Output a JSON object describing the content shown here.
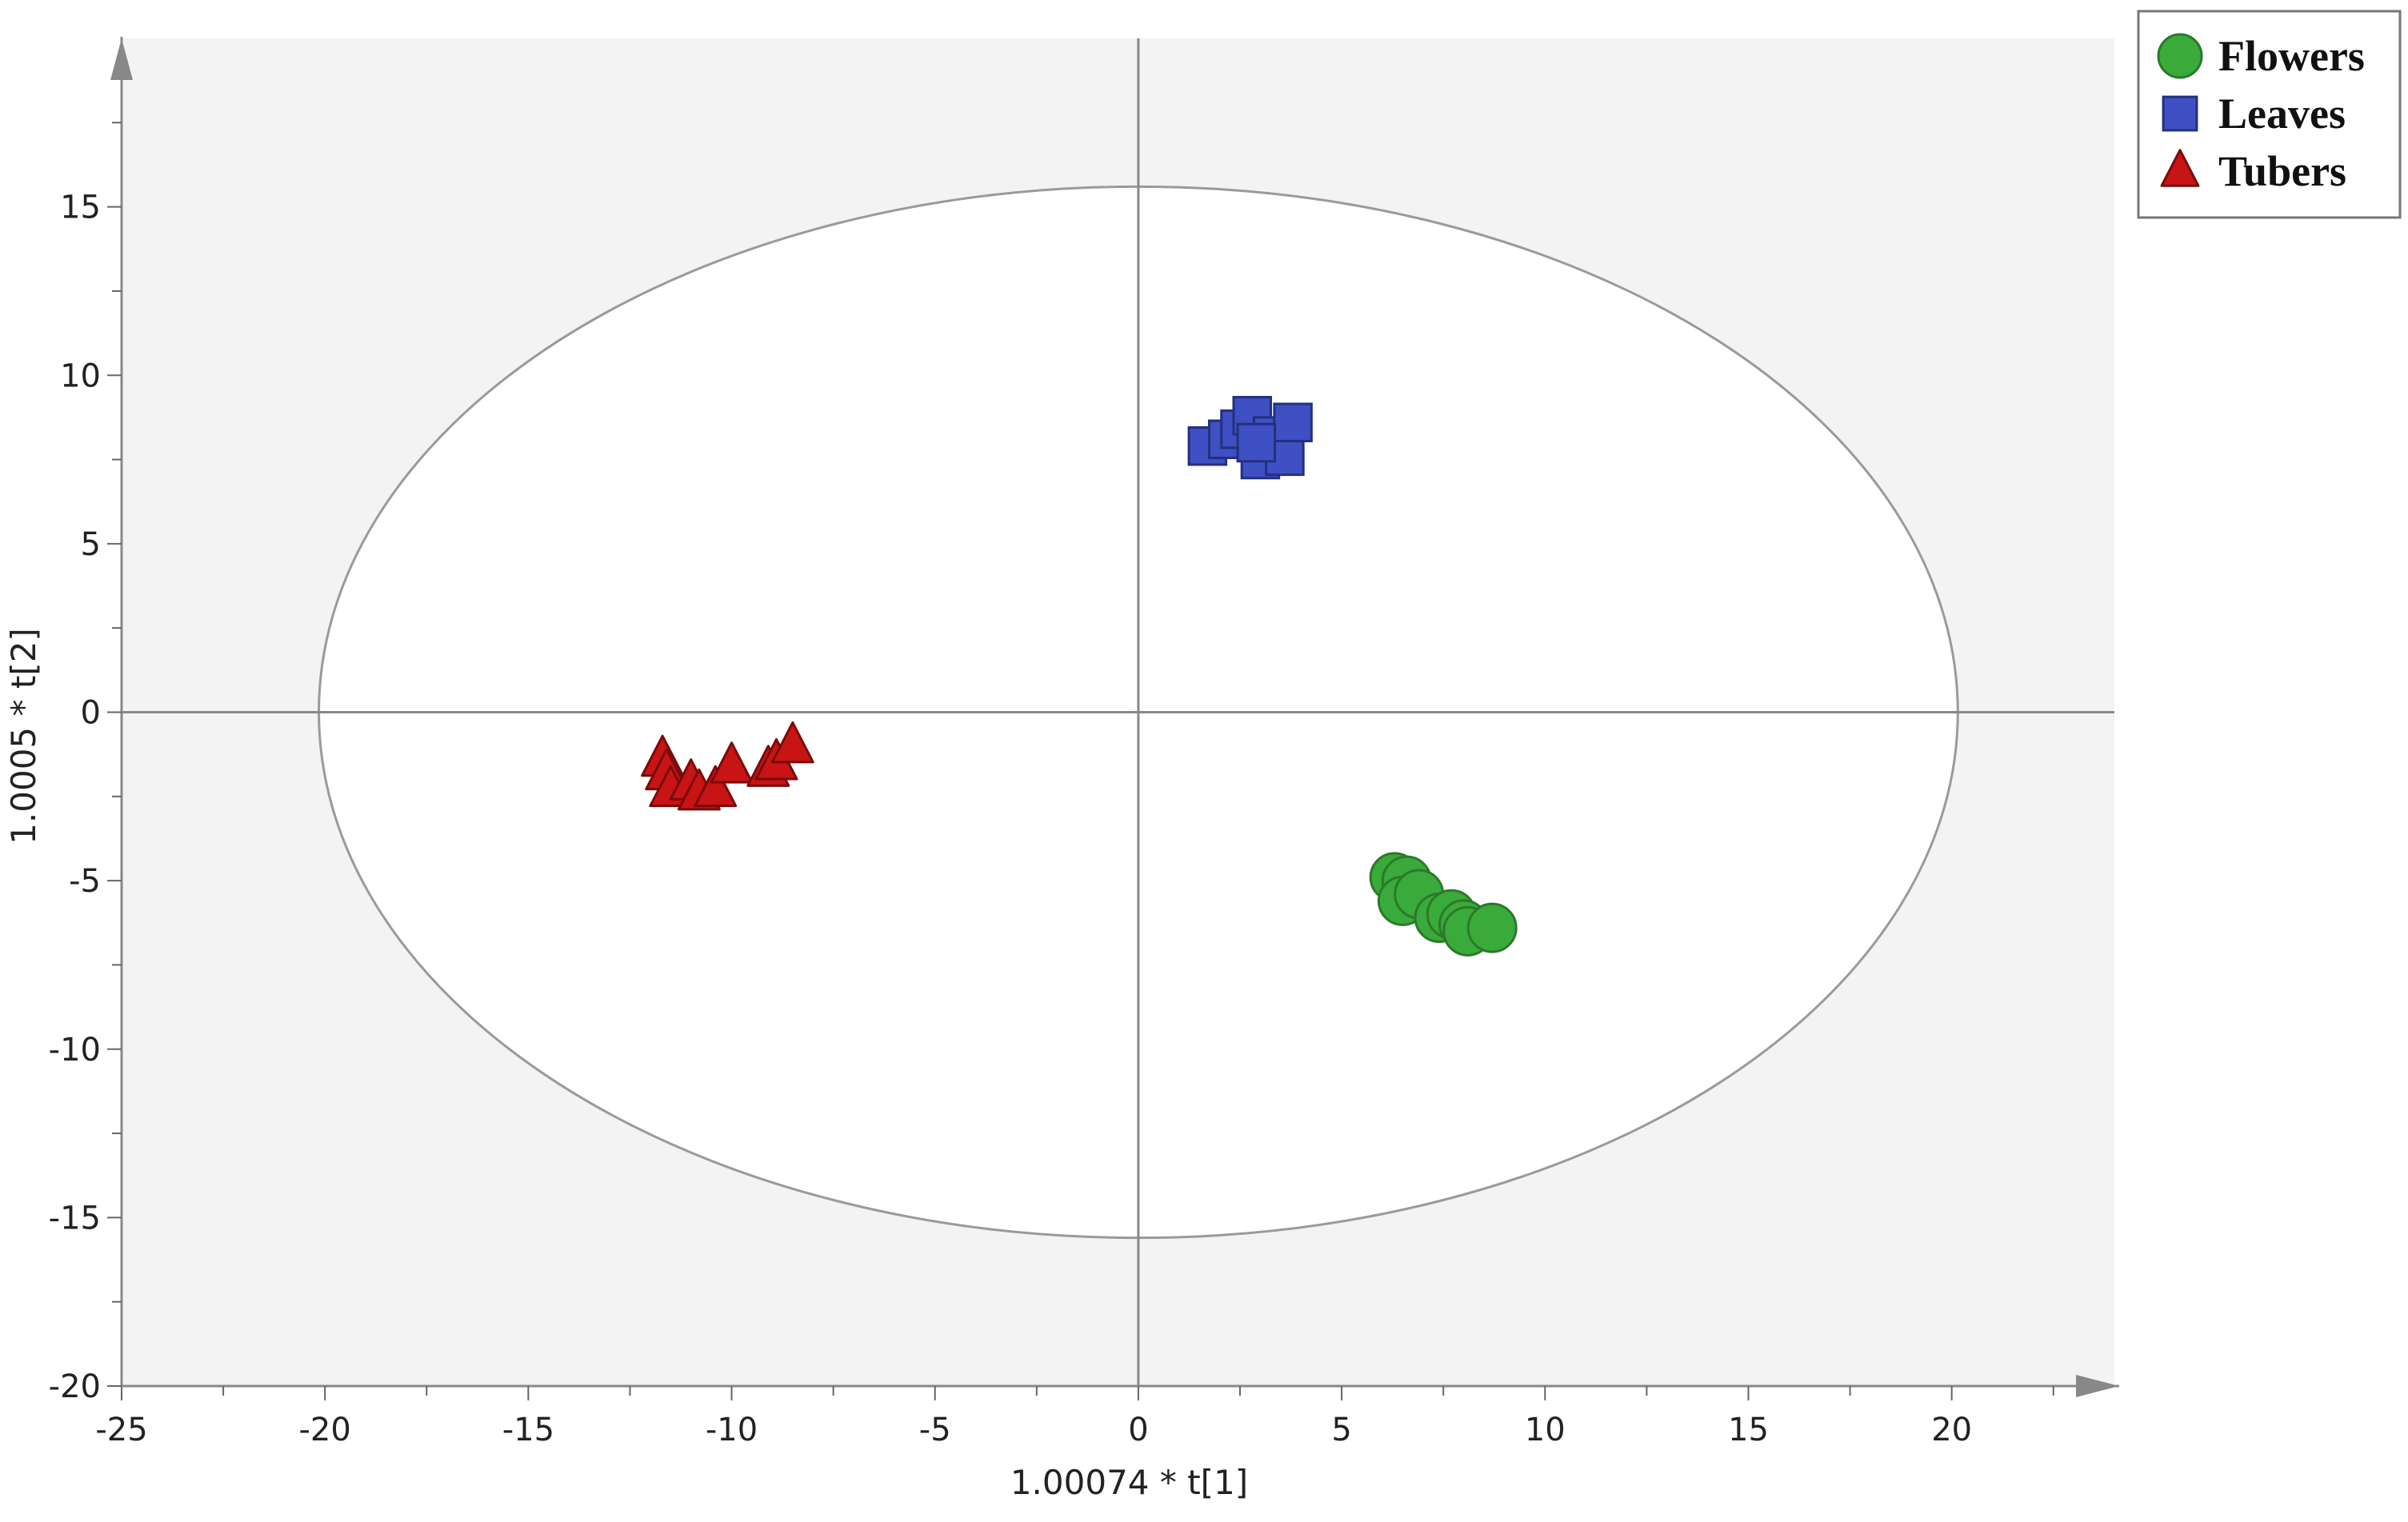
{
  "chart_data": {
    "type": "scatter",
    "xlabel": "1.00074 * t[1]",
    "ylabel": "1.0005 * t[2]",
    "xlim": [
      -25,
      24
    ],
    "ylim": [
      -20,
      20
    ],
    "xticks": [
      -25,
      -20,
      -15,
      -10,
      -5,
      0,
      5,
      10,
      15,
      20
    ],
    "yticks": [
      -20,
      -15,
      -10,
      -5,
      0,
      5,
      10,
      15
    ],
    "grid": false,
    "legend_position": "top-right",
    "ellipse": {
      "rx": 20.15,
      "ry": 15.6
    },
    "series": [
      {
        "name": "Flowers",
        "marker": "circle",
        "color": "#3aaa3a",
        "edge_color": "#2a7a2a",
        "points": [
          {
            "x": 6.3,
            "y": -4.9
          },
          {
            "x": 6.6,
            "y": -5.0
          },
          {
            "x": 6.5,
            "y": -5.6
          },
          {
            "x": 6.9,
            "y": -5.4
          },
          {
            "x": 7.4,
            "y": -6.1
          },
          {
            "x": 7.7,
            "y": -6.0
          },
          {
            "x": 8.0,
            "y": -6.3
          },
          {
            "x": 8.1,
            "y": -6.5
          },
          {
            "x": 8.7,
            "y": -6.4
          }
        ]
      },
      {
        "name": "Leaves",
        "marker": "square",
        "color": "#3f4fc4",
        "edge_color": "#23307f",
        "points": [
          {
            "x": 1.7,
            "y": 7.9
          },
          {
            "x": 2.2,
            "y": 8.1
          },
          {
            "x": 2.5,
            "y": 8.4
          },
          {
            "x": 2.8,
            "y": 8.8
          },
          {
            "x": 3.0,
            "y": 7.5
          },
          {
            "x": 3.3,
            "y": 8.2
          },
          {
            "x": 3.6,
            "y": 7.6
          },
          {
            "x": 3.8,
            "y": 8.6
          },
          {
            "x": 2.9,
            "y": 8.0
          }
        ]
      },
      {
        "name": "Tubers",
        "marker": "triangle",
        "color": "#c81414",
        "edge_color": "#7a0a0a",
        "points": [
          {
            "x": -11.7,
            "y": -1.4
          },
          {
            "x": -11.6,
            "y": -1.8
          },
          {
            "x": -11.5,
            "y": -2.3
          },
          {
            "x": -11.0,
            "y": -2.1
          },
          {
            "x": -10.8,
            "y": -2.4
          },
          {
            "x": -10.4,
            "y": -2.3
          },
          {
            "x": -10.0,
            "y": -1.6
          },
          {
            "x": -9.1,
            "y": -1.7
          },
          {
            "x": -8.9,
            "y": -1.5
          },
          {
            "x": -8.5,
            "y": -1.0
          }
        ]
      }
    ]
  }
}
